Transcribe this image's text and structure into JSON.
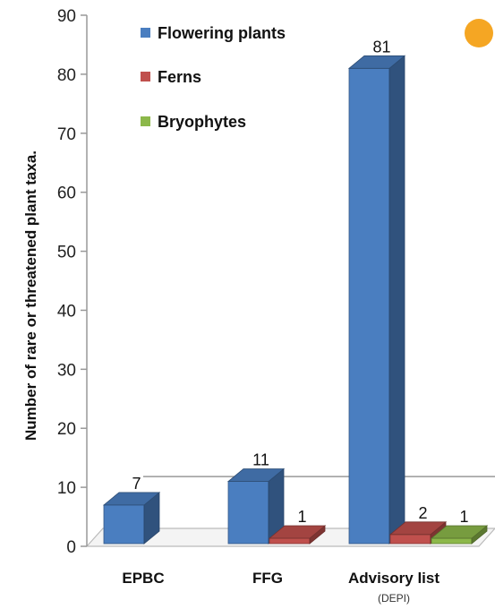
{
  "chart_data": {
    "type": "bar",
    "categories": [
      "EPBC",
      "FFG",
      "Advisory list"
    ],
    "category_notes": [
      "",
      "",
      "(DEPI)"
    ],
    "series": [
      {
        "name": "Flowering plants",
        "values": [
          7,
          11,
          81
        ],
        "color": "#4a7ec0"
      },
      {
        "name": "Ferns",
        "values": [
          0,
          1,
          2
        ],
        "color": "#c0504d"
      },
      {
        "name": "Bryophytes",
        "values": [
          0,
          0,
          1
        ],
        "color": "#8cb84a"
      }
    ],
    "data_labels": [
      [
        "7",
        "",
        ""
      ],
      [
        "11",
        "1",
        ""
      ],
      [
        "81",
        "2",
        "1"
      ]
    ],
    "ylabel": "Number of rare or threatened plant taxa.",
    "xlabel": "",
    "ylim": [
      0,
      90
    ],
    "yticks": [
      0,
      10,
      20,
      30,
      40,
      50,
      60,
      70,
      80,
      90
    ],
    "legend_position": "top-center",
    "style": "3d-column",
    "grid": false,
    "decoration_color": "#f5a623"
  }
}
